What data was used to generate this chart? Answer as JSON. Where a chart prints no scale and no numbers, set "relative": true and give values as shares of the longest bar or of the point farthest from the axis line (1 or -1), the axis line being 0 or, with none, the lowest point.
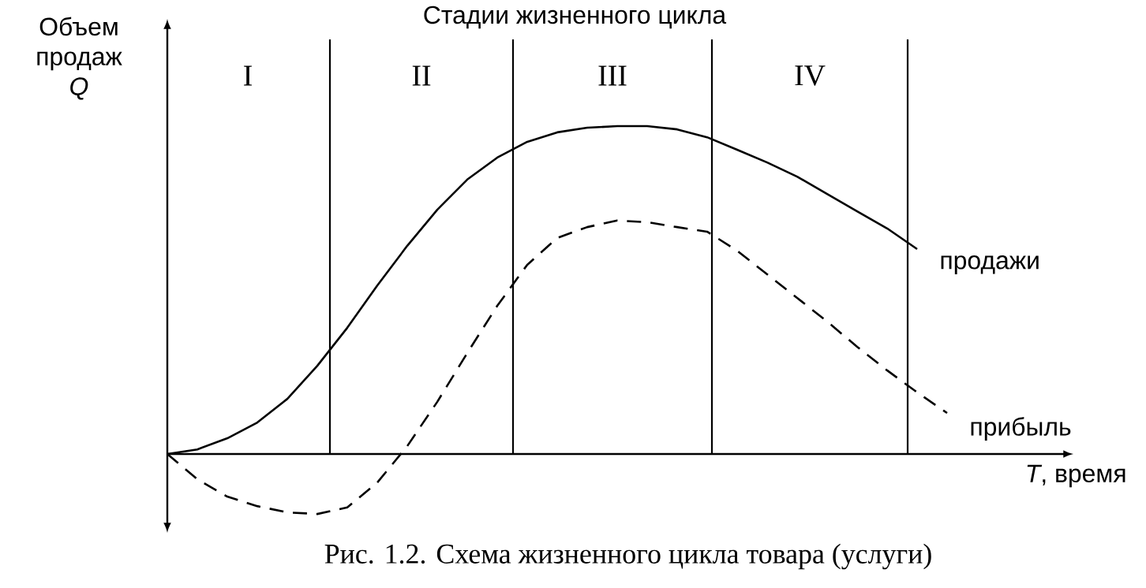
{
  "chart_data": {
    "type": "line",
    "relative": true,
    "title": "Стадии жизненного цикла",
    "xlabel": "*T*, время",
    "ylabel": "Объем продаж *Q*",
    "annotations": [
      "Рис. 1.2. Схема жизненного цикла товара (услуги)",
      "I",
      "II",
      "III",
      "IV"
    ],
    "categories": [
      null,
      null,
      null,
      null,
      null,
      null,
      null,
      null,
      null,
      null,
      null,
      null,
      null,
      null,
      null,
      null,
      null,
      null,
      null,
      null,
      null,
      null,
      null,
      null,
      null,
      null,
      null
    ],
    "series": [
      {
        "name": "продажи",
        "color": "#000000",
        "line_style": "solid",
        "values": [
          0,
          0.014,
          0.048,
          0.096,
          0.168,
          0.269,
          0.385,
          0.514,
          0.635,
          0.745,
          0.837,
          0.904,
          0.952,
          0.981,
          0.995,
          1.0,
          1.0,
          0.99,
          0.966,
          0.928,
          0.889,
          0.846,
          0.793,
          0.74,
          0.688,
          0.625,
          null
        ]
      },
      {
        "name": "прибыль",
        "color": "#000000",
        "line_style": "dashed",
        "values": [
          0,
          -0.077,
          -0.13,
          -0.159,
          -0.178,
          -0.183,
          -0.163,
          -0.087,
          0.024,
          0.159,
          0.308,
          0.452,
          0.577,
          0.659,
          0.692,
          0.712,
          0.707,
          0.692,
          0.678,
          0.62,
          0.548,
          0.476,
          0.404,
          0.327,
          0.255,
          0.188,
          0.125
        ]
      }
    ]
  }
}
